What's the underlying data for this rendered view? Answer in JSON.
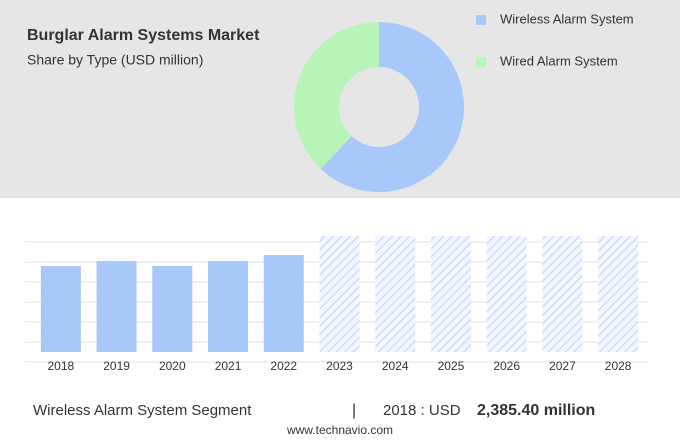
{
  "chart_data": [
    {
      "type": "pie",
      "title": "Burglar Alarm Systems Market",
      "subtitle": "Share by Type (USD million)",
      "categories": [
        "Wireless Alarm System",
        "Wired Alarm System"
      ],
      "values": [
        62,
        38
      ],
      "colors": [
        "#a9c8fa",
        "#b8f3b8"
      ]
    },
    {
      "type": "bar",
      "categories": [
        "2018",
        "2019",
        "2020",
        "2021",
        "2022",
        "2023",
        "2024",
        "2025",
        "2026",
        "2027",
        "2028"
      ],
      "values": [
        2385.4,
        2525,
        2390,
        2525,
        2690,
        null,
        null,
        null,
        null,
        null,
        null
      ],
      "color": "#a9c8fa",
      "ylim": [
        0,
        3220
      ],
      "grid": true
    }
  ],
  "footer": {
    "segment": "Wireless Alarm System Segment",
    "separator": "|",
    "period": "2018 : USD",
    "value": "2,385.40 million"
  },
  "source": "www.technavio.com"
}
